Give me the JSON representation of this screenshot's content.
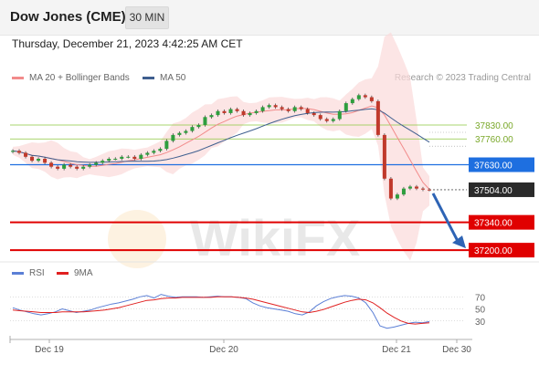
{
  "header": {
    "title": "Dow Jones (CME)",
    "timeframe": "30 MIN"
  },
  "datetime": "Thursday, December 21, 2023 4:42:25 AM CET",
  "legend": {
    "ma20_label": "MA 20 + Bollinger Bands",
    "ma50_label": "MA 50",
    "ma20_color": "#f28b8b",
    "ma50_color": "#3f5f8f",
    "credit": "Research © 2023 Trading Central"
  },
  "rsi_legend": {
    "rsi_label": "RSI",
    "ma_label": "9MA",
    "rsi_color": "#5b7fd6",
    "ma_color": "#e02020"
  },
  "watermark": "WikiFX",
  "chart_data": [
    {
      "type": "candlestick",
      "title": "Dow Jones (CME)",
      "x_tick_labels": [
        "Dec 19",
        "Dec 20",
        "Dec 21",
        "Dec 30"
      ],
      "ylim": [
        37150,
        38000
      ],
      "levels": [
        {
          "value": 37830.0,
          "label": "37830.00",
          "color": "#8dc63f",
          "style": "thin"
        },
        {
          "value": 37760.0,
          "label": "37760.00",
          "color": "#8dc63f",
          "style": "thin"
        },
        {
          "value": 37630.0,
          "label": "37630.00",
          "color": "#1e6fe0",
          "style": "box"
        },
        {
          "value": 37504.0,
          "label": "37504.00",
          "color": "#2a2a2a",
          "style": "box-current"
        },
        {
          "value": 37340.0,
          "label": "37340.00",
          "color": "#e00000",
          "style": "box-thick"
        },
        {
          "value": 37200.0,
          "label": "37200.00",
          "color": "#e00000",
          "style": "box-thick"
        }
      ],
      "close_series": [
        37700,
        37690,
        37670,
        37650,
        37660,
        37640,
        37620,
        37610,
        37630,
        37620,
        37610,
        37620,
        37630,
        37640,
        37650,
        37660,
        37660,
        37670,
        37670,
        37660,
        37680,
        37690,
        37700,
        37710,
        37750,
        37780,
        37790,
        37800,
        37820,
        37830,
        37870,
        37880,
        37900,
        37890,
        37910,
        37900,
        37880,
        37890,
        37900,
        37920,
        37930,
        37920,
        37910,
        37900,
        37920,
        37910,
        37890,
        37880,
        37860,
        37850,
        37860,
        37900,
        37940,
        37960,
        37980,
        37970,
        37950,
        37780,
        37560,
        37460,
        37480,
        37510,
        37520,
        37510,
        37505,
        37504
      ],
      "arrow": {
        "from": 37504.0,
        "to": 37200.0,
        "color": "#2e64b5"
      }
    },
    {
      "type": "line",
      "title": "RSI",
      "series": [
        {
          "name": "RSI",
          "color": "#5b7fd6",
          "values": [
            52,
            48,
            45,
            42,
            40,
            42,
            45,
            50,
            47,
            44,
            46,
            48,
            52,
            55,
            58,
            60,
            63,
            66,
            70,
            72,
            68,
            74,
            71,
            69,
            70,
            70,
            70,
            69,
            70,
            71,
            70,
            70,
            69,
            67,
            60,
            55,
            52,
            50,
            48,
            46,
            42,
            40,
            45,
            55,
            62,
            67,
            70,
            72,
            71,
            68,
            60,
            44,
            22,
            18,
            20,
            23,
            26,
            28,
            27,
            29
          ]
        },
        {
          "name": "9MA",
          "color": "#e02020",
          "values": [
            48,
            47,
            46,
            45,
            44,
            44,
            44,
            45,
            45,
            45,
            45,
            46,
            47,
            48,
            50,
            52,
            55,
            58,
            61,
            64,
            65,
            67,
            68,
            68,
            69,
            69,
            69,
            69,
            69,
            70,
            70,
            70,
            69,
            68,
            66,
            63,
            60,
            57,
            54,
            51,
            48,
            45,
            44,
            46,
            49,
            53,
            57,
            61,
            64,
            66,
            65,
            60,
            52,
            43,
            36,
            30,
            26,
            25,
            26,
            27
          ]
        }
      ],
      "y_tick_labels": [
        "70",
        "50",
        "30"
      ],
      "ylim": [
        10,
        90
      ]
    }
  ]
}
